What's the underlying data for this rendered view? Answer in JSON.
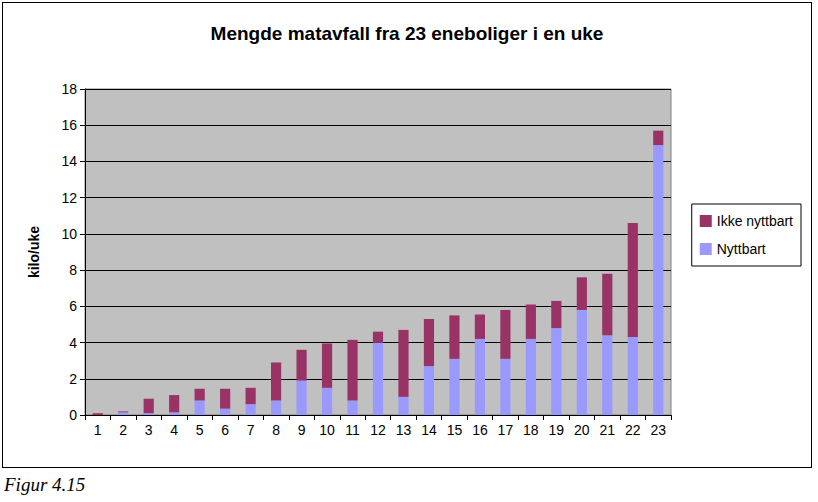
{
  "chart_data": {
    "type": "bar",
    "title": "Mengde matavfall fra 23 eneboliger i en uke",
    "ylabel": "kilo/uke",
    "caption": "Figur 4.15",
    "categories": [
      "1",
      "2",
      "3",
      "4",
      "5",
      "6",
      "7",
      "8",
      "9",
      "10",
      "11",
      "12",
      "13",
      "14",
      "15",
      "16",
      "17",
      "18",
      "19",
      "20",
      "21",
      "22",
      "23"
    ],
    "series": [
      {
        "name": "Nyttbart",
        "color": "#9999ff",
        "values": [
          0,
          0.15,
          0.1,
          0.15,
          0.8,
          0.35,
          0.6,
          0.8,
          1.9,
          1.5,
          0.8,
          4.0,
          1.0,
          2.7,
          3.1,
          4.2,
          3.1,
          4.2,
          4.8,
          5.8,
          4.4,
          4.3,
          14.9
        ]
      },
      {
        "name": "Ikke nyttbart",
        "color": "#993366",
        "values": [
          0.1,
          0.05,
          0.8,
          0.95,
          0.65,
          1.1,
          0.9,
          2.1,
          1.7,
          2.45,
          3.35,
          0.6,
          3.7,
          2.6,
          2.4,
          1.35,
          2.7,
          1.9,
          1.5,
          1.8,
          3.4,
          6.3,
          0.8
        ]
      }
    ],
    "stacked": true,
    "ylim": [
      0,
      18
    ],
    "yticks": [
      0,
      2,
      4,
      6,
      8,
      10,
      12,
      14,
      16,
      18
    ],
    "grid": true,
    "legend": "right"
  }
}
